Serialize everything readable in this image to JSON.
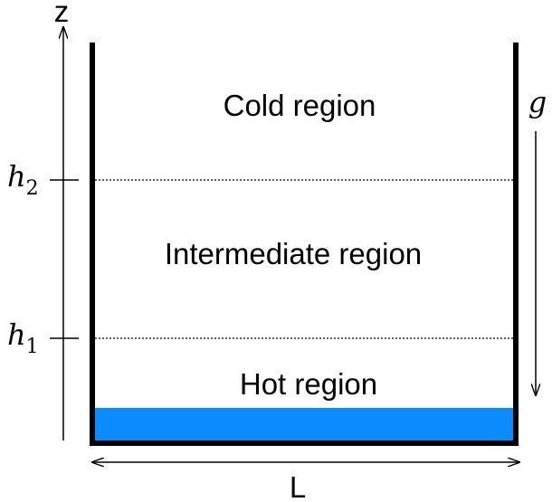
{
  "labels": {
    "cold_region": "Cold region",
    "intermediate_region": "Intermediate region",
    "hot_region": "Hot region",
    "z_axis": "z",
    "width": "L",
    "gravity": "g",
    "h2_symbol": "h",
    "h2_subscript": "2",
    "h1_symbol": "h",
    "h1_subscript": "1"
  },
  "colors": {
    "hot_fluid": "#0a8cff",
    "walls": "#000000"
  }
}
